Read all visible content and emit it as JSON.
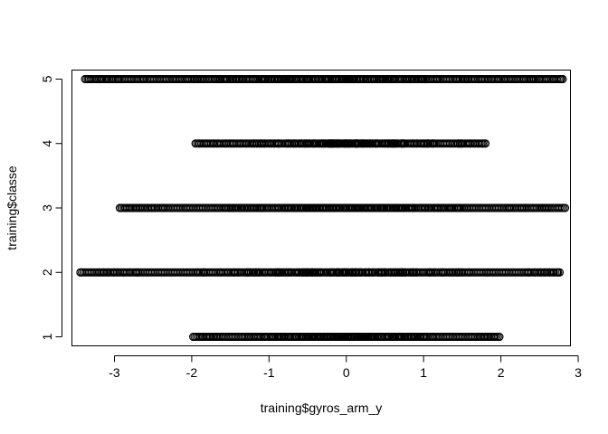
{
  "chart_data": {
    "type": "scatter",
    "title": "",
    "xlabel": "training$gyros_arm_y",
    "ylabel": "training$classe",
    "xlim": [
      -3.55,
      2.9
    ],
    "ylim": [
      0.86,
      5.14
    ],
    "x_ticks": [
      -3,
      -2,
      -1,
      0,
      1,
      2,
      3
    ],
    "x_tick_labels": [
      "-3",
      "-2",
      "-1",
      "0",
      "1",
      "2",
      "3"
    ],
    "y_ticks": [
      1,
      2,
      3,
      4,
      5
    ],
    "y_tick_labels": [
      "1",
      "2",
      "3",
      "4",
      "5"
    ],
    "grid": false,
    "legend": "none",
    "marker": "open-circle",
    "point_color": "#000000",
    "series": [
      {
        "y": 1,
        "x_min": -1.98,
        "x_max": 1.98,
        "outliers": [
          -1.98,
          -1.86,
          -1.81,
          -1.76,
          -1.71,
          -1.68,
          1.73,
          1.79,
          1.85,
          1.92,
          1.98
        ]
      },
      {
        "y": 2,
        "x_min": -3.44,
        "x_max": 2.76,
        "outliers": [
          -3.44,
          -3.2,
          -3.14,
          -3.08,
          -3.01,
          -2.95,
          -2.88,
          -2.8,
          -2.72,
          2.36,
          2.44,
          2.51,
          2.57,
          2.63,
          2.68,
          2.73,
          2.76
        ]
      },
      {
        "y": 3,
        "x_min": -2.93,
        "x_max": 2.83,
        "outliers": [
          -2.93,
          -2.86,
          -2.8,
          -2.72,
          -2.66,
          -2.58,
          -2.52,
          2.11,
          2.27,
          2.32,
          2.53,
          2.56,
          2.59,
          2.83
        ]
      },
      {
        "y": 4,
        "x_min": -1.95,
        "x_max": 1.8,
        "outliers": [
          -1.95,
          -1.9,
          -1.81,
          -1.72,
          -1.66,
          1.6,
          1.66,
          1.71,
          1.76,
          1.8
        ]
      },
      {
        "y": 5,
        "x_min": -3.38,
        "x_max": 2.8,
        "outliers": [
          -3.38,
          -3.33,
          -3.23,
          -3.17,
          -3.1,
          -3.02,
          -2.95,
          -2.87,
          -2.78,
          2.18,
          2.3,
          2.43,
          2.5,
          2.68,
          2.77,
          2.8
        ]
      }
    ]
  }
}
